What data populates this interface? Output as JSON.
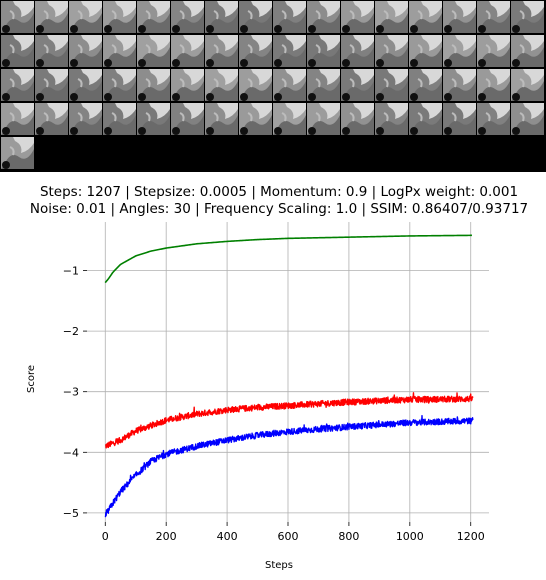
{
  "thumbnails": {
    "count": 65,
    "columns": 16
  },
  "chart_data": {
    "type": "line",
    "title_lines": [
      "Steps: 1207 | Stepsize: 0.0005 | Momentum: 0.9 | LogPx weight: 0.001",
      "Noise: 0.01 | Angles: 30 | Frequency Scaling: 1.0 | SSIM: 0.86407/0.93717"
    ],
    "xlabel": "Steps",
    "ylabel": "Score",
    "xlim": [
      -60,
      1260
    ],
    "ylim": [
      -5.15,
      -0.2
    ],
    "xticks": [
      0,
      200,
      400,
      600,
      800,
      1000,
      1200
    ],
    "yticks": [
      -5,
      -4,
      -3,
      -2,
      -1
    ],
    "ytick_labels": [
      "−5",
      "−4",
      "−3",
      "−2",
      "−1"
    ],
    "grid": true,
    "series": [
      {
        "color": "#008000",
        "noise": 0.0,
        "lw": 1.6,
        "x": [
          0,
          10,
          25,
          50,
          100,
          150,
          200,
          300,
          400,
          500,
          600,
          800,
          1000,
          1207
        ],
        "y": [
          -1.2,
          -1.14,
          -1.03,
          -0.9,
          -0.76,
          -0.68,
          -0.63,
          -0.56,
          -0.52,
          -0.49,
          -0.47,
          -0.45,
          -0.43,
          -0.42
        ]
      },
      {
        "color": "#ff0000",
        "noise": 0.05,
        "lw": 1.4,
        "x": [
          0,
          50,
          100,
          200,
          300,
          400,
          500,
          600,
          800,
          1000,
          1207
        ],
        "y": [
          -3.9,
          -3.8,
          -3.65,
          -3.47,
          -3.37,
          -3.3,
          -3.26,
          -3.23,
          -3.17,
          -3.13,
          -3.12
        ]
      },
      {
        "color": "#0000ff",
        "noise": 0.05,
        "lw": 1.4,
        "x": [
          0,
          20,
          50,
          100,
          150,
          200,
          300,
          400,
          500,
          600,
          800,
          1000,
          1207
        ],
        "y": [
          -5.05,
          -4.88,
          -4.65,
          -4.38,
          -4.15,
          -4.03,
          -3.9,
          -3.8,
          -3.72,
          -3.66,
          -3.58,
          -3.51,
          -3.48
        ]
      }
    ]
  }
}
